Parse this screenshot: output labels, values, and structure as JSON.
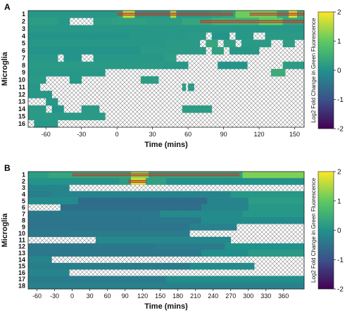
{
  "panels": [
    {
      "letter": "A",
      "chart_data": {
        "type": "heatmap",
        "xlabel": "Time (mins)",
        "ylabel": "Microglia",
        "x_range": [
          -75,
          158
        ],
        "x_ticks": [
          -60,
          -30,
          0,
          30,
          60,
          90,
          120,
          150
        ],
        "row_labels": [
          "1",
          "2",
          "3",
          "4",
          "5",
          "6",
          "7",
          "8",
          "9",
          "10",
          "11",
          "12",
          "13",
          "14",
          "15",
          "16"
        ],
        "colorbar": {
          "label": "Log2 Fold Change in Green Fluorescence",
          "ticks": [
            2,
            1,
            0,
            -1,
            -2
          ],
          "range": [
            -2,
            2
          ]
        },
        "drug_bars_row1": [
          [
            0,
            98
          ],
          [
            112,
            158
          ]
        ],
        "drug_bars_row2": [
          [
            70,
            158
          ]
        ],
        "rows": [
          [
            [
              -75,
              0,
              0.1
            ],
            [
              0,
              5,
              0.25
            ],
            [
              5,
              15,
              1.6
            ],
            [
              15,
              45,
              0.1
            ],
            [
              45,
              50,
              1.5
            ],
            [
              50,
              78,
              0.1
            ],
            [
              78,
              88,
              0.2
            ],
            [
              88,
              100,
              0.3
            ],
            [
              100,
              135,
              1.1
            ],
            [
              135,
              145,
              0.4
            ],
            [
              145,
              152,
              1.7
            ],
            [
              152,
              158,
              0.5
            ]
          ],
          [
            [
              -75,
              -50,
              0.2
            ],
            [
              -50,
              -40,
              0.1
            ],
            [
              -20,
              -5,
              0.2
            ],
            [
              -5,
              25,
              0.25
            ],
            [
              25,
              55,
              0.2
            ],
            [
              55,
              80,
              0.35
            ],
            [
              80,
              120,
              0.55
            ],
            [
              120,
              140,
              1.0
            ],
            [
              140,
              158,
              0.3
            ]
          ],
          [
            [
              -75,
              158,
              0.1
            ]
          ],
          [
            [
              -75,
              10,
              0.05
            ],
            [
              10,
              60,
              0.1
            ],
            [
              60,
              75,
              0.15
            ],
            [
              80,
              95,
              0.05
            ],
            [
              100,
              115,
              0.1
            ],
            [
              125,
              158,
              0.15
            ]
          ],
          [
            [
              -75,
              40,
              0.1
            ],
            [
              40,
              70,
              0.15
            ],
            [
              75,
              85,
              0.35
            ],
            [
              90,
              100,
              0.25
            ],
            [
              105,
              130,
              0.15
            ],
            [
              140,
              150,
              0.2
            ]
          ],
          [
            [
              -75,
              20,
              0.05
            ],
            [
              20,
              75,
              0.15
            ],
            [
              80,
              90,
              0.25
            ],
            [
              95,
              120,
              0.1
            ]
          ],
          [
            [
              -75,
              -50,
              0.1
            ],
            [
              -45,
              -30,
              0.05
            ],
            [
              -20,
              40,
              0.1
            ],
            [
              40,
              50,
              0.2
            ]
          ],
          [
            [
              -75,
              40,
              0.15
            ],
            [
              40,
              60,
              0.1
            ],
            [
              85,
              110,
              0.05
            ],
            [
              140,
              158,
              0.2
            ]
          ],
          [
            [
              -75,
              -10,
              0.1
            ],
            [
              130,
              142,
              0.45
            ]
          ],
          [
            [
              -75,
              -60,
              0.15
            ],
            [
              -40,
              -30,
              0.1
            ],
            [
              20,
              35,
              0.2
            ]
          ],
          [
            [
              -75,
              -65,
              0.1
            ],
            [
              55,
              58,
              0.25
            ],
            [
              60,
              65,
              0.15
            ]
          ],
          [
            [
              -75,
              -55,
              0.1
            ]
          ],
          [
            [
              -60,
              -50,
              0.1
            ]
          ],
          [
            [
              -75,
              -60,
              0.15
            ],
            [
              -55,
              -45,
              0.05
            ],
            [
              -30,
              -15,
              0.15
            ],
            [
              55,
              80,
              0.2
            ]
          ],
          [
            [
              -75,
              -10,
              0.15
            ]
          ],
          [
            [
              -70,
              -50,
              0.1
            ]
          ]
        ]
      }
    },
    {
      "letter": "B",
      "chart_data": {
        "type": "heatmap",
        "xlabel": "Time (mins)",
        "ylabel": "Microglia",
        "x_range": [
          -75,
          395
        ],
        "x_ticks": [
          -60,
          -30,
          0,
          30,
          60,
          90,
          120,
          150,
          180,
          210,
          240,
          270,
          300,
          330,
          360
        ],
        "row_labels": [
          "1",
          "2",
          "3",
          "4",
          "5",
          "6",
          "7",
          "8",
          "9",
          "10",
          "11",
          "12",
          "13",
          "14",
          "15",
          "16",
          "17",
          "18"
        ],
        "colorbar": {
          "label": "Log2 Fold Change in Green Fluorescence",
          "ticks": [
            2,
            1,
            0,
            -1,
            -2
          ],
          "range": [
            -2,
            2
          ]
        },
        "drug_bars_row1": [
          [
            0,
            285
          ]
        ],
        "drug_bars_row2": [
          [
            96,
            126
          ]
        ],
        "rows": [
          [
            [
              -75,
              -40,
              0.2
            ],
            [
              -40,
              100,
              0.35
            ],
            [
              100,
              130,
              1.3
            ],
            [
              130,
              290,
              0.3
            ],
            [
              290,
              395,
              1.2
            ]
          ],
          [
            [
              -75,
              80,
              0.05
            ],
            [
              80,
              100,
              0.2
            ],
            [
              100,
              125,
              1.7
            ],
            [
              125,
              160,
              0.25
            ],
            [
              160,
              395,
              0.0
            ]
          ],
          [
            [
              -75,
              -5,
              -0.2
            ]
          ],
          [
            [
              -75,
              -35,
              -0.3
            ],
            [
              -35,
              270,
              -0.2
            ],
            [
              270,
              395,
              0.1
            ]
          ],
          [
            [
              -75,
              10,
              -0.1
            ],
            [
              10,
              230,
              -0.6
            ],
            [
              230,
              300,
              -0.2
            ],
            [
              300,
              395,
              0.2
            ]
          ],
          [
            [
              -20,
              220,
              -0.55
            ],
            [
              220,
              300,
              -0.2
            ],
            [
              300,
              395,
              0.1
            ]
          ],
          [
            [
              -75,
              150,
              -0.4
            ],
            [
              150,
              290,
              -0.1
            ],
            [
              290,
              395,
              0.1
            ]
          ],
          [
            [
              -75,
              120,
              -0.45
            ],
            [
              120,
              220,
              -0.4
            ],
            [
              220,
              395,
              -0.1
            ]
          ],
          [
            [
              -75,
              200,
              -0.45
            ],
            [
              200,
              280,
              -0.25
            ]
          ],
          [
            [
              -75,
              -5,
              -0.4
            ],
            [
              -5,
              200,
              -0.35
            ]
          ],
          [
            [
              40,
              270,
              -0.15
            ]
          ],
          [
            [
              -75,
              140,
              -0.4
            ],
            [
              140,
              260,
              -0.35
            ],
            [
              260,
              395,
              0.0
            ]
          ],
          [
            [
              -75,
              220,
              -0.4
            ],
            [
              220,
              300,
              -0.05
            ],
            [
              300,
              395,
              0.15
            ]
          ],
          [
            [
              -75,
              -35,
              -0.2
            ]
          ],
          [
            [
              -75,
              100,
              -0.3
            ],
            [
              100,
              200,
              -0.35
            ],
            [
              200,
              310,
              -0.1
            ]
          ],
          [
            [
              -75,
              -5,
              -0.2
            ]
          ],
          [
            [
              -75,
              160,
              -0.35
            ],
            [
              160,
              395,
              -0.05
            ]
          ],
          [
            [
              -75,
              395,
              -0.25
            ]
          ]
        ]
      }
    }
  ]
}
